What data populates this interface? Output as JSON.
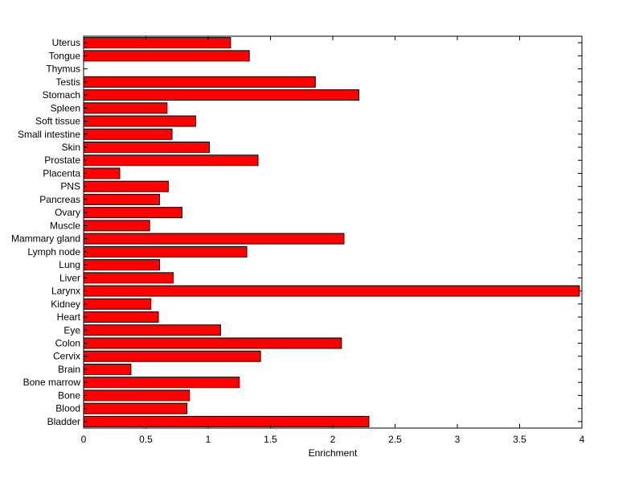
{
  "chart_data": {
    "type": "bar",
    "orientation": "horizontal",
    "xlabel": "Enrichment",
    "ylabel": "",
    "title": "",
    "xlim": [
      0,
      4
    ],
    "xticks": [
      "0",
      "0.5",
      "1",
      "1.5",
      "2",
      "2.5",
      "3",
      "3.5",
      "4"
    ],
    "grid": false,
    "bar_color": "#ff0000",
    "categories": [
      "Bladder",
      "Blood",
      "Bone",
      "Bone marrow",
      "Brain",
      "Cervix",
      "Colon",
      "Eye",
      "Heart",
      "Kidney",
      "Larynx",
      "Liver",
      "Lung",
      "Lymph node",
      "Mammary gland",
      "Muscle",
      "Ovary",
      "Pancreas",
      "PNS",
      "Placenta",
      "Prostate",
      "Skin",
      "Small intestine",
      "Soft tissue",
      "Spleen",
      "Stomach",
      "Testis",
      "Thymus",
      "Tongue",
      "Uterus"
    ],
    "values": [
      2.29,
      0.83,
      0.85,
      1.25,
      0.38,
      1.42,
      2.07,
      1.1,
      0.6,
      0.54,
      3.98,
      0.72,
      0.61,
      1.31,
      2.09,
      0.53,
      0.79,
      0.61,
      0.68,
      0.29,
      1.4,
      1.01,
      0.71,
      0.9,
      0.67,
      2.21,
      1.86,
      0,
      1.33,
      1.18
    ]
  }
}
